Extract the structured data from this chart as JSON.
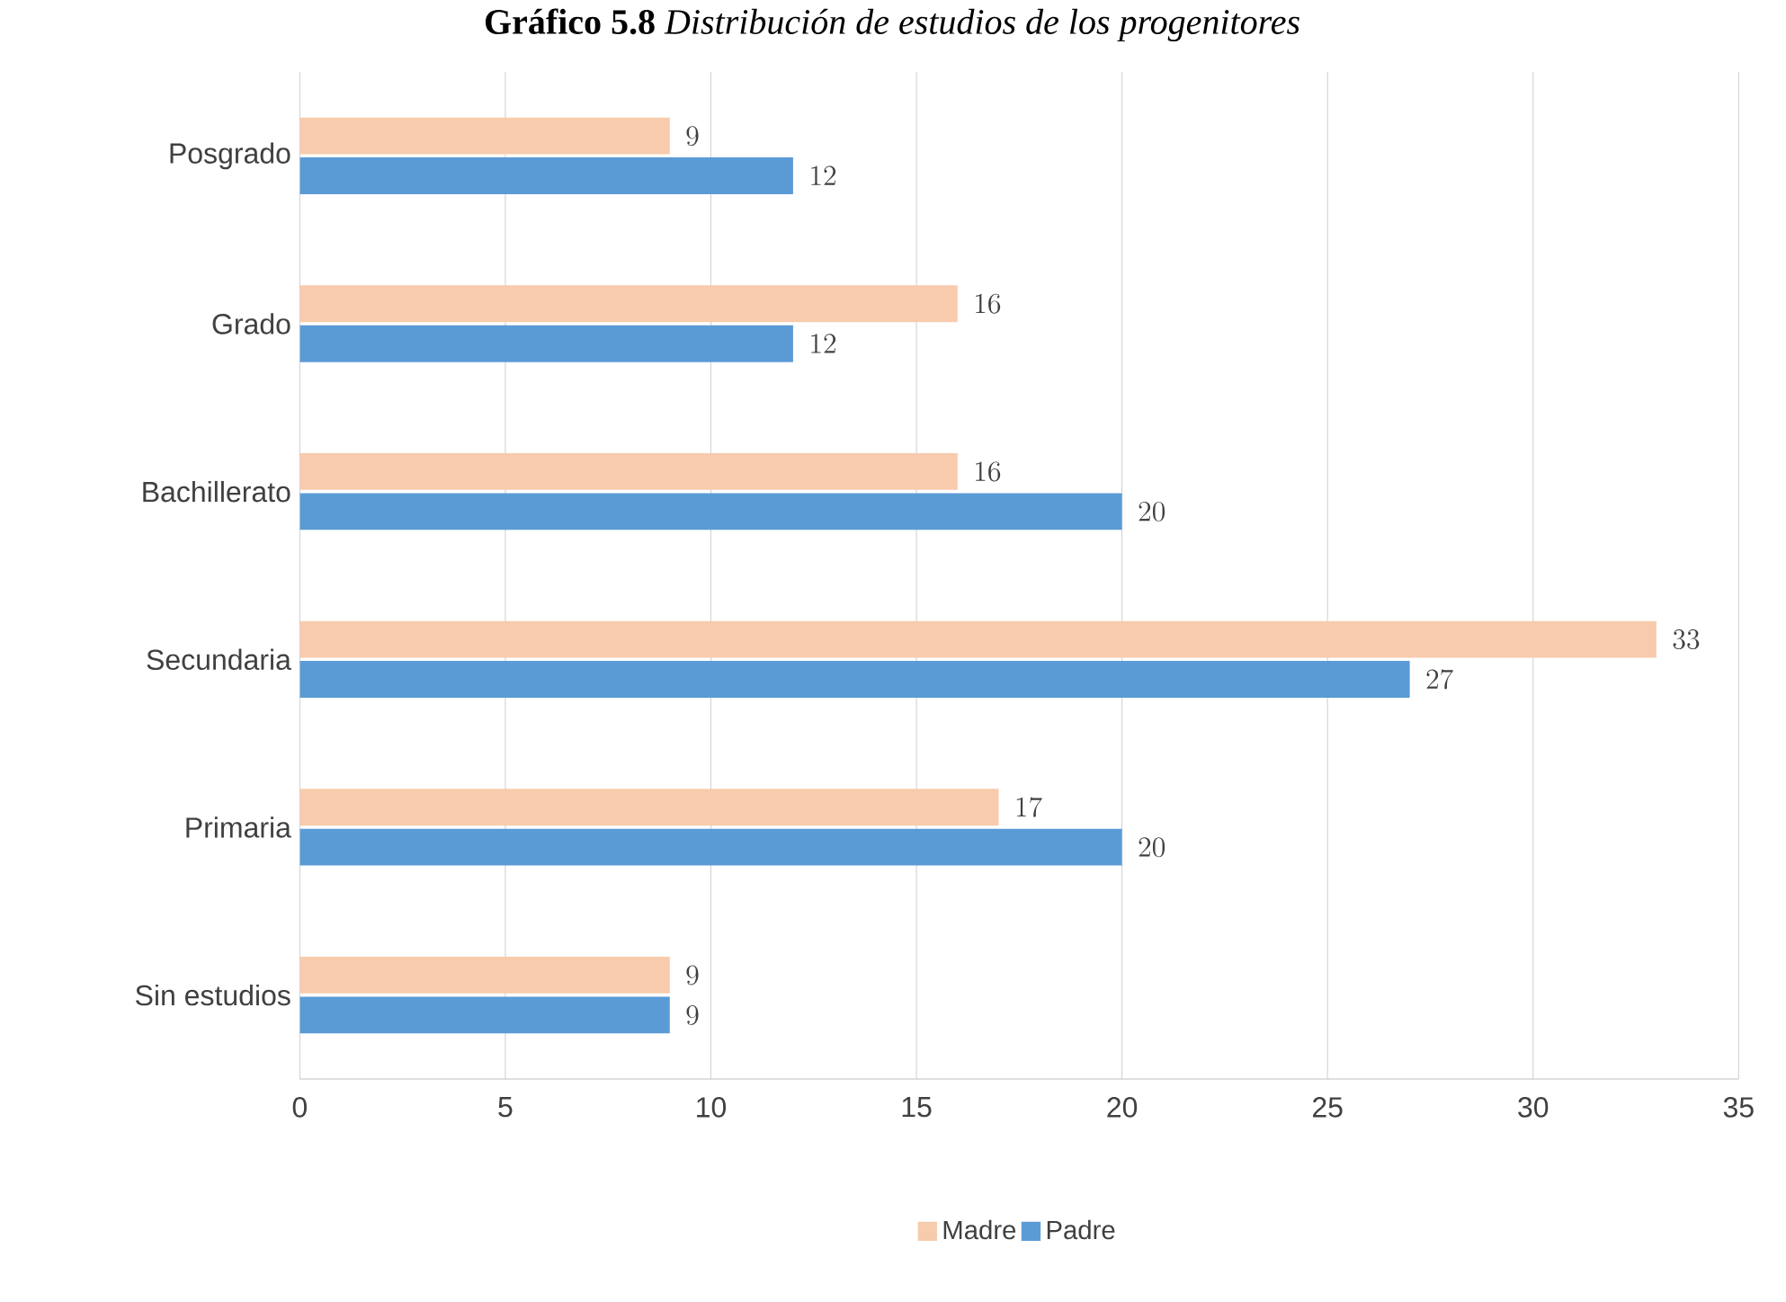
{
  "chart_data": {
    "type": "bar",
    "orientation": "horizontal",
    "title": "**Gráfico 5.8** *Distribución de estudios de los progenitores*",
    "categories": [
      "Posgrado",
      "Grado",
      "Bachillerato",
      "Secundaria",
      "Primaria",
      "Sin estudios"
    ],
    "series": [
      {
        "name": "Madre",
        "color": "#f8cbad",
        "values": [
          9,
          16,
          16,
          33,
          17,
          9
        ]
      },
      {
        "name": "Padre",
        "color": "#5b9bd5",
        "values": [
          12,
          12,
          20,
          27,
          20,
          9
        ]
      }
    ],
    "xlim": [
      0,
      35
    ],
    "xticks": [
      0,
      5,
      10,
      15,
      20,
      25,
      30,
      35
    ],
    "grid": "x",
    "legend": "bottom",
    "data_labels": true
  }
}
